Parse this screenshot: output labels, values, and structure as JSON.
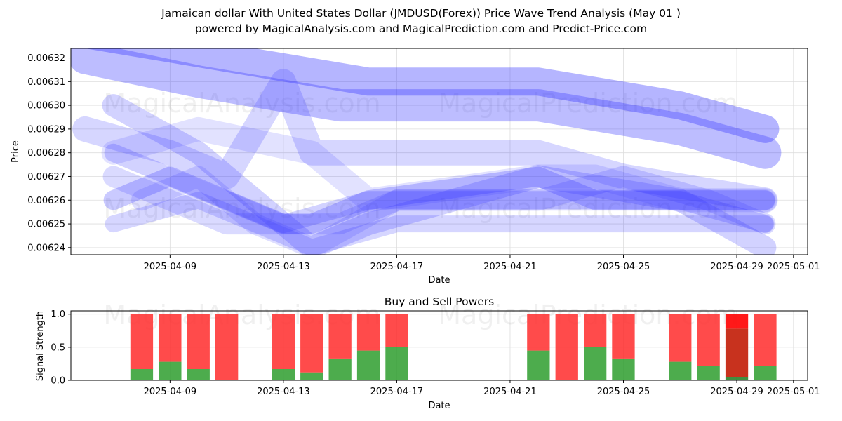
{
  "title": "Jamaican dollar With United States Dollar (JMDUSD(Forex)) Price Wave Trend Analysis (May 01 )",
  "subtitle": "powered by MagicalAnalysis.com and MagicalPrediction.com and Predict-Price.com",
  "watermark": {
    "left": "MagicalAnalysis.com",
    "right": "MagicalPrediction.com"
  },
  "colors": {
    "wave": "#3333ff",
    "buy": "#2e9e2e",
    "sell": "#ff2b2b",
    "dark_sell": "#c8321e",
    "dark_buy": "#1e7a1e"
  },
  "chart_data": [
    {
      "type": "line",
      "title": "",
      "xlabel": "Date",
      "ylabel": "Price",
      "xlim": [
        "2025-04-05T12:00",
        "2025-05-01T12:00"
      ],
      "ylim": [
        0.006237,
        0.006324
      ],
      "x_ticks": [
        "2025-04-09",
        "2025-04-13",
        "2025-04-17",
        "2025-04-21",
        "2025-04-25",
        "2025-04-29",
        "2025-05-01"
      ],
      "y_ticks": [
        "0.00624",
        "0.00625",
        "0.00626",
        "0.00627",
        "0.00628",
        "0.00629",
        "0.00630",
        "0.00631",
        "0.00632"
      ],
      "grid": true,
      "series": [
        {
          "x": [
            "2025-04-06",
            "2025-04-10",
            "2025-04-15",
            "2025-04-22",
            "2025-04-27",
            "2025-04-30"
          ],
          "y": [
            0.00632,
            0.00631,
            0.0063,
            0.0063,
            0.00629,
            0.00628
          ]
        },
        {
          "x": [
            "2025-04-06",
            "2025-04-11",
            "2025-04-16",
            "2025-04-22",
            "2025-04-27",
            "2025-04-30"
          ],
          "y": [
            0.00633,
            0.00632,
            0.00631,
            0.00631,
            0.0063,
            0.00629
          ]
        },
        {
          "x": [
            "2025-04-07",
            "2025-04-10",
            "2025-04-13",
            "2025-04-14",
            "2025-04-16",
            "2025-04-22",
            "2025-04-27",
            "2025-04-30"
          ],
          "y": [
            0.0063,
            0.00628,
            0.00625,
            0.00624,
            0.00625,
            0.00627,
            0.00626,
            0.00624
          ]
        },
        {
          "x": [
            "2025-04-06",
            "2025-04-09",
            "2025-04-11",
            "2025-04-13",
            "2025-04-14",
            "2025-04-17",
            "2025-04-22",
            "2025-04-25",
            "2025-04-30"
          ],
          "y": [
            0.00629,
            0.00628,
            0.00627,
            0.00631,
            0.00628,
            0.00628,
            0.00628,
            0.00627,
            0.00626
          ]
        },
        {
          "x": [
            "2025-04-07",
            "2025-04-09",
            "2025-04-11",
            "2025-04-13",
            "2025-04-14",
            "2025-04-16",
            "2025-04-22",
            "2025-04-24",
            "2025-04-27",
            "2025-04-30"
          ],
          "y": [
            0.00626,
            0.00627,
            0.00626,
            0.00625,
            0.00625,
            0.00626,
            0.00627,
            0.00626,
            0.00626,
            0.00626
          ]
        },
        {
          "x": [
            "2025-04-07",
            "2025-04-09",
            "2025-04-11",
            "2025-04-13",
            "2025-04-15",
            "2025-04-17",
            "2025-04-22",
            "2025-04-25",
            "2025-04-28",
            "2025-04-30"
          ],
          "y": [
            0.00627,
            0.00626,
            0.00625,
            0.00625,
            0.00625,
            0.00626,
            0.00626,
            0.00627,
            0.00626,
            0.00625
          ]
        },
        {
          "x": [
            "2025-04-07",
            "2025-04-09",
            "2025-04-11",
            "2025-04-13",
            "2025-04-16",
            "2025-04-22",
            "2025-04-25",
            "2025-04-27",
            "2025-04-30"
          ],
          "y": [
            0.00628,
            0.00627,
            0.00626,
            0.00625,
            0.00626,
            0.00626,
            0.00626,
            0.00626,
            0.00625
          ]
        },
        {
          "x": [
            "2025-04-07",
            "2025-04-10",
            "2025-04-12",
            "2025-04-14",
            "2025-04-17",
            "2025-04-22",
            "2025-04-24",
            "2025-04-27",
            "2025-04-30"
          ],
          "y": [
            0.00625,
            0.00626,
            0.00625,
            0.00624,
            0.00625,
            0.00625,
            0.00625,
            0.00625,
            0.00625
          ]
        },
        {
          "x": [
            "2025-04-08",
            "2025-04-10",
            "2025-04-12",
            "2025-04-14",
            "2025-04-17",
            "2025-04-22",
            "2025-04-24",
            "2025-04-26",
            "2025-04-30"
          ],
          "y": [
            0.00626,
            0.00627,
            0.00625,
            0.00624,
            0.00626,
            0.00626,
            0.00626,
            0.00626,
            0.00626
          ]
        },
        {
          "x": [
            "2025-04-07",
            "2025-04-10",
            "2025-04-14",
            "2025-04-16",
            "2025-04-22",
            "2025-04-24",
            "2025-04-27",
            "2025-04-30"
          ],
          "y": [
            0.00628,
            0.00629,
            0.00628,
            0.00626,
            0.00627,
            0.00627,
            0.00626,
            0.00626
          ]
        }
      ]
    },
    {
      "type": "bar",
      "title": "Buy and Sell Powers",
      "xlabel": "Date",
      "ylabel": "Signal Strength",
      "xlim": [
        "2025-04-05T12:00",
        "2025-05-01T12:00"
      ],
      "ylim": [
        0,
        1.05
      ],
      "x_ticks": [
        "2025-04-09",
        "2025-04-13",
        "2025-04-17",
        "2025-04-21",
        "2025-04-25",
        "2025-04-29",
        "2025-05-01"
      ],
      "y_ticks": [
        "0.0",
        "0.5",
        "1.0"
      ],
      "grid": true,
      "dates": [
        "2025-04-08",
        "2025-04-09",
        "2025-04-10",
        "2025-04-11",
        "2025-04-13",
        "2025-04-14",
        "2025-04-15",
        "2025-04-16",
        "2025-04-17",
        "2025-04-22",
        "2025-04-23",
        "2025-04-24",
        "2025-04-25",
        "2025-04-27",
        "2025-04-28",
        "2025-04-29",
        "2025-04-30"
      ],
      "buy": [
        0.17,
        0.28,
        0.17,
        0.0,
        0.17,
        0.12,
        0.33,
        0.45,
        0.5,
        0.45,
        0.0,
        0.5,
        0.33,
        0.28,
        0.22,
        0.05,
        0.22
      ],
      "sell": [
        0.83,
        0.72,
        0.83,
        1.0,
        0.83,
        0.88,
        0.67,
        0.55,
        0.5,
        0.55,
        1.0,
        0.5,
        0.67,
        0.72,
        0.78,
        0.95,
        0.78
      ],
      "highlight": "2025-04-29"
    }
  ]
}
